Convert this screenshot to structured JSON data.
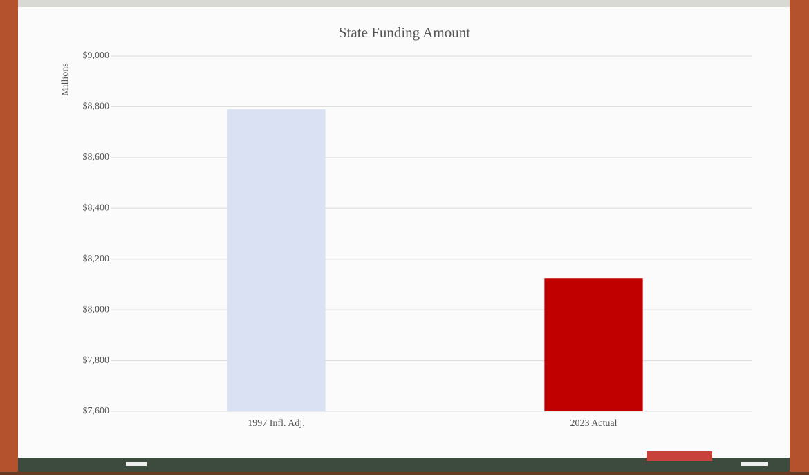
{
  "chart_data": {
    "type": "bar",
    "title": "State Funding Amount",
    "y_label": "Millions",
    "categories": [
      "1997 Infl. Adj.",
      "2023 Actual"
    ],
    "values": [
      8790,
      8125
    ],
    "colors": [
      "#d9e1f2",
      "#c00000"
    ],
    "ylim": [
      7600,
      9000
    ],
    "yticks": [
      {
        "value": 7600,
        "label": "$7,600"
      },
      {
        "value": 7800,
        "label": "$7,800"
      },
      {
        "value": 8000,
        "label": "$8,000"
      },
      {
        "value": 8200,
        "label": "$8,200"
      },
      {
        "value": 8400,
        "label": "$8,400"
      },
      {
        "value": 8600,
        "label": "$8,600"
      },
      {
        "value": 8800,
        "label": "$8,800"
      },
      {
        "value": 9000,
        "label": "$9,000"
      }
    ],
    "grid": true
  }
}
